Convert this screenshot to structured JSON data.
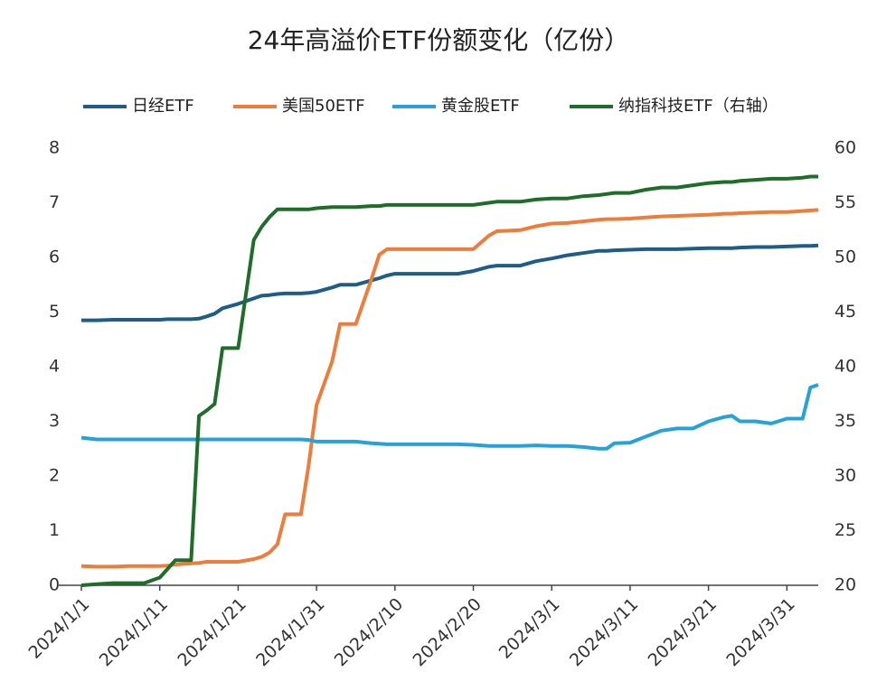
{
  "chart_data": {
    "type": "line",
    "title": "24年高溢价ETF份额变化（亿份）",
    "x": [
      "2024/1/1",
      "2024/1/3",
      "2024/1/5",
      "2024/1/7",
      "2024/1/9",
      "2024/1/11",
      "2024/1/12",
      "2024/1/13",
      "2024/1/15",
      "2024/1/16",
      "2024/1/17",
      "2024/1/18",
      "2024/1/19",
      "2024/1/21",
      "2024/1/23",
      "2024/1/24",
      "2024/1/25",
      "2024/1/26",
      "2024/1/27",
      "2024/1/29",
      "2024/1/30",
      "2024/1/31",
      "2024/2/2",
      "2024/2/3",
      "2024/2/5",
      "2024/2/7",
      "2024/2/8",
      "2024/2/9",
      "2024/2/10",
      "2024/2/14",
      "2024/2/18",
      "2024/2/20",
      "2024/2/22",
      "2024/2/23",
      "2024/2/26",
      "2024/2/28",
      "2024/3/1",
      "2024/3/3",
      "2024/3/5",
      "2024/3/7",
      "2024/3/8",
      "2024/3/9",
      "2024/3/11",
      "2024/3/13",
      "2024/3/15",
      "2024/3/17",
      "2024/3/19",
      "2024/3/21",
      "2024/3/23",
      "2024/3/24",
      "2024/3/25",
      "2024/3/27",
      "2024/3/29",
      "2024/3/31",
      "2024/4/2",
      "2024/4/3",
      "2024/4/4"
    ],
    "series": [
      {
        "name": "日经ETF",
        "color": "#1f5c87",
        "values": [
          4.85,
          4.85,
          4.86,
          4.86,
          4.86,
          4.86,
          4.87,
          4.87,
          4.87,
          4.88,
          4.92,
          4.97,
          5.07,
          5.15,
          5.25,
          5.3,
          5.31,
          5.33,
          5.34,
          5.34,
          5.35,
          5.37,
          5.45,
          5.5,
          5.5,
          5.58,
          5.62,
          5.67,
          5.7,
          5.7,
          5.7,
          5.75,
          5.83,
          5.85,
          5.85,
          5.93,
          5.98,
          6.04,
          6.08,
          6.12,
          6.12,
          6.13,
          6.14,
          6.15,
          6.15,
          6.15,
          6.16,
          6.17,
          6.17,
          6.17,
          6.18,
          6.19,
          6.19,
          6.2,
          6.21,
          6.21,
          6.22
        ]
      },
      {
        "name": "美国50ETF",
        "color": "#ee7d3b",
        "values": [
          0.35,
          0.34,
          0.34,
          0.35,
          0.35,
          0.35,
          0.36,
          0.38,
          0.4,
          0.41,
          0.43,
          0.43,
          0.43,
          0.43,
          0.48,
          0.52,
          0.6,
          0.75,
          1.3,
          1.3,
          2.2,
          3.3,
          4.1,
          4.78,
          4.78,
          5.6,
          6.05,
          6.15,
          6.15,
          6.15,
          6.15,
          6.15,
          6.4,
          6.48,
          6.5,
          6.57,
          6.62,
          6.63,
          6.66,
          6.69,
          6.7,
          6.7,
          6.71,
          6.73,
          6.75,
          6.76,
          6.77,
          6.78,
          6.8,
          6.8,
          6.81,
          6.82,
          6.83,
          6.83,
          6.85,
          6.86,
          6.87
        ]
      },
      {
        "name": "黄金股ETF",
        "color": "#27a2d8",
        "values": [
          2.7,
          2.67,
          2.67,
          2.67,
          2.67,
          2.67,
          2.67,
          2.67,
          2.67,
          2.67,
          2.67,
          2.67,
          2.67,
          2.67,
          2.67,
          2.67,
          2.67,
          2.67,
          2.67,
          2.67,
          2.66,
          2.63,
          2.63,
          2.63,
          2.63,
          2.6,
          2.59,
          2.58,
          2.58,
          2.58,
          2.58,
          2.57,
          2.55,
          2.55,
          2.55,
          2.56,
          2.55,
          2.55,
          2.53,
          2.5,
          2.5,
          2.6,
          2.61,
          2.72,
          2.83,
          2.87,
          2.87,
          3.0,
          3.08,
          3.1,
          3.0,
          3.0,
          2.96,
          3.05,
          3.05,
          3.62,
          3.67
        ]
      },
      {
        "name": "纳指科技ETF（右轴）",
        "color": "#1e6e2a",
        "axis": "y2",
        "values": [
          20.0,
          20.1,
          20.2,
          20.2,
          20.2,
          20.7,
          21.5,
          22.3,
          22.3,
          35.5,
          36.0,
          36.6,
          41.7,
          41.7,
          51.6,
          52.8,
          53.7,
          54.4,
          54.4,
          54.4,
          54.4,
          54.5,
          54.6,
          54.6,
          54.6,
          54.7,
          54.7,
          54.8,
          54.8,
          54.8,
          54.8,
          54.8,
          55.0,
          55.1,
          55.1,
          55.3,
          55.4,
          55.4,
          55.6,
          55.7,
          55.8,
          55.9,
          55.9,
          56.2,
          56.4,
          56.4,
          56.6,
          56.8,
          56.9,
          56.9,
          57.0,
          57.1,
          57.2,
          57.2,
          57.3,
          57.4,
          57.4
        ]
      }
    ],
    "xlim": [
      "2024/1/1",
      "2024/4/4"
    ],
    "xticks": [
      "2024/1/1",
      "2024/1/11",
      "2024/1/21",
      "2024/1/31",
      "2024/2/10",
      "2024/2/20",
      "2024/3/1",
      "2024/3/11",
      "2024/3/21",
      "2024/3/31"
    ],
    "ylim": [
      0,
      8
    ],
    "yticks": [
      0,
      1,
      2,
      3,
      4,
      5,
      6,
      7,
      8
    ],
    "y2lim": [
      20,
      60
    ],
    "y2ticks": [
      20,
      25,
      30,
      35,
      40,
      45,
      50,
      55,
      60
    ],
    "legend": "top"
  }
}
